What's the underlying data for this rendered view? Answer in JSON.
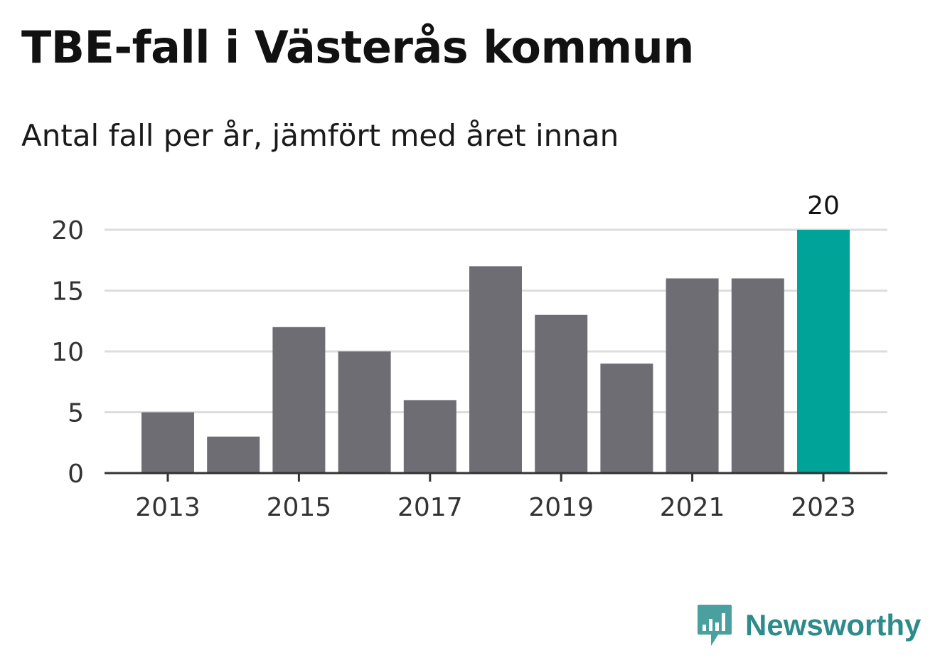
{
  "chart_data": {
    "type": "bar",
    "title": "TBE-fall i Västerås kommun",
    "subtitle": "Antal fall per år, jämfört med året innan",
    "categories": [
      "2013",
      "2014",
      "2015",
      "2016",
      "2017",
      "2018",
      "2019",
      "2020",
      "2021",
      "2022",
      "2023"
    ],
    "values": [
      5,
      3,
      12,
      10,
      6,
      17,
      13,
      9,
      16,
      16,
      20
    ],
    "x_tick_labels": [
      "2013",
      "2015",
      "2017",
      "2019",
      "2021",
      "2023"
    ],
    "y_ticks": [
      0,
      5,
      10,
      15,
      20
    ],
    "ylim": [
      0,
      20
    ],
    "xlabel": "",
    "ylabel": "",
    "grid": true,
    "highlight": {
      "category": "2023",
      "label": "20"
    },
    "colors": {
      "bar": "#6e6d73",
      "highlight": "#00a398",
      "grid": "#dddddd",
      "axis": "#333333"
    }
  },
  "brand": {
    "name": "Newsworthy",
    "icon": "bar-chart-speech-bubble-icon",
    "color": "#2e8b8b"
  }
}
